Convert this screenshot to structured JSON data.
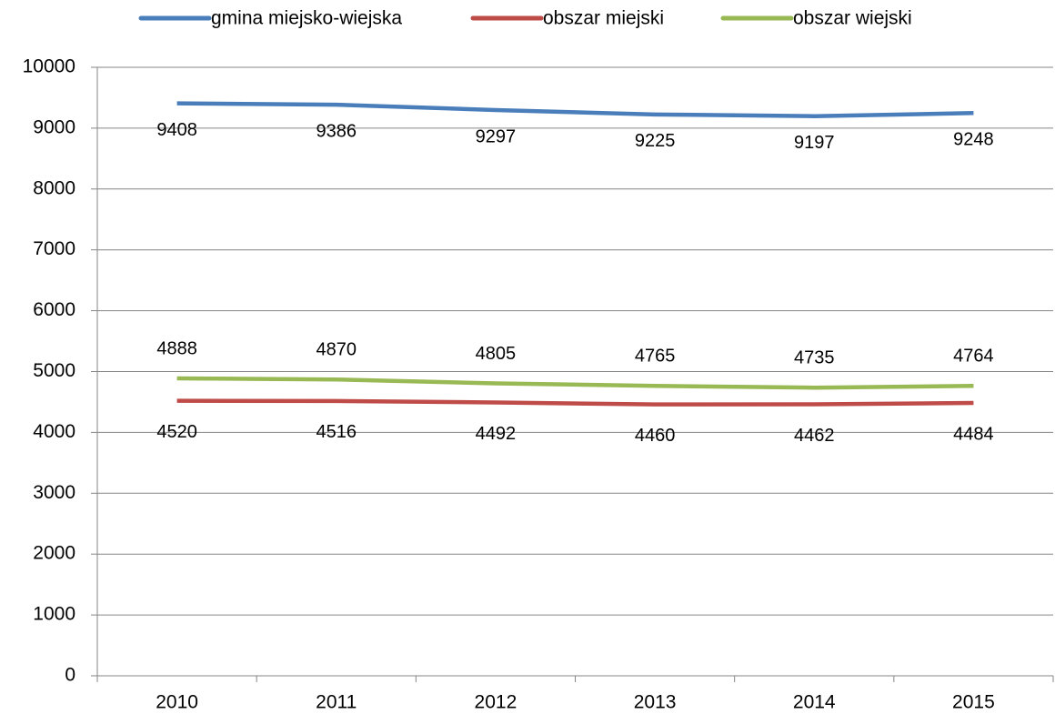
{
  "chart_data": {
    "type": "line",
    "categories": [
      "2010",
      "2011",
      "2012",
      "2013",
      "2014",
      "2015"
    ],
    "series": [
      {
        "name": "gmina miejsko-wiejska",
        "color": "#4a7ebb",
        "values": [
          9408,
          9386,
          9297,
          9225,
          9197,
          9248
        ]
      },
      {
        "name": "obszar miejski",
        "color": "#be4b48",
        "values": [
          4520,
          4516,
          4492,
          4460,
          4462,
          4484
        ]
      },
      {
        "name": "obszar wiejski",
        "color": "#98b954",
        "values": [
          4888,
          4870,
          4805,
          4765,
          4735,
          4764
        ]
      }
    ],
    "ylim": [
      0,
      10000
    ],
    "yticks": [
      0,
      1000,
      2000,
      3000,
      4000,
      5000,
      6000,
      7000,
      8000,
      9000,
      10000
    ],
    "grid": true,
    "legend": "top"
  }
}
